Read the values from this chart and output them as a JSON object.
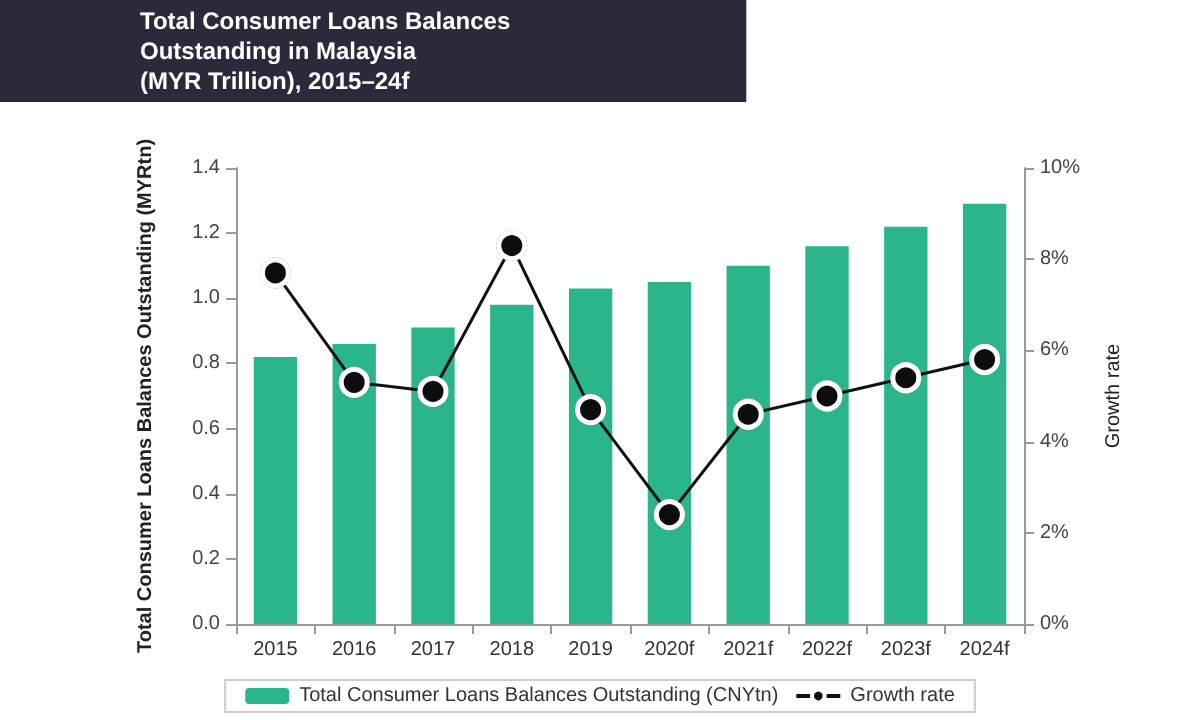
{
  "chart_data": {
    "type": "bar",
    "title": "Total Consumer Loans Balances\nOutstanding in Malaysia\n(MYR Trillion), 2015–24f",
    "categories": [
      "2015",
      "2016",
      "2017",
      "2018",
      "2019",
      "2020f",
      "2021f",
      "2022f",
      "2023f",
      "2024f"
    ],
    "series": [
      {
        "name": "Total Consumer Loans Balances Outstanding (CNYtn)",
        "color": "#2bb58a",
        "values": [
          0.82,
          0.86,
          0.91,
          0.98,
          1.03,
          1.05,
          1.1,
          1.16,
          1.22,
          1.29
        ]
      },
      {
        "name": "Growth rate",
        "type": "line",
        "axis": "y2",
        "color": "#111111",
        "marker": "circle",
        "values": [
          7.7,
          5.3,
          5.1,
          8.3,
          4.7,
          2.4,
          4.6,
          5.0,
          5.4,
          5.8
        ]
      }
    ],
    "ylabel": "Total Consumer Loans Balances Outstanding (MYRtn)",
    "y2label": "Growth rate",
    "ylim": [
      0,
      1.4
    ],
    "yticks": [
      {
        "value": 0,
        "label": "0.0"
      },
      {
        "value": 0.2,
        "label": "0.2"
      },
      {
        "value": 0.4,
        "label": "0.4"
      },
      {
        "value": 0.6,
        "label": "0.6"
      },
      {
        "value": 0.8,
        "label": "0.8"
      },
      {
        "value": 1.0,
        "label": "1.0"
      },
      {
        "value": 1.2,
        "label": "1.2"
      },
      {
        "value": 1.4,
        "label": "1.4"
      }
    ],
    "y2lim": [
      0,
      10
    ],
    "y2ticks": [
      {
        "value": 0,
        "label": "0%"
      },
      {
        "value": 2,
        "label": "2%"
      },
      {
        "value": 4,
        "label": "4%"
      },
      {
        "value": 6,
        "label": "6%"
      },
      {
        "value": 8,
        "label": "8%"
      },
      {
        "value": 10,
        "label": "10%"
      }
    ],
    "grid": false,
    "legend": "bottom"
  }
}
